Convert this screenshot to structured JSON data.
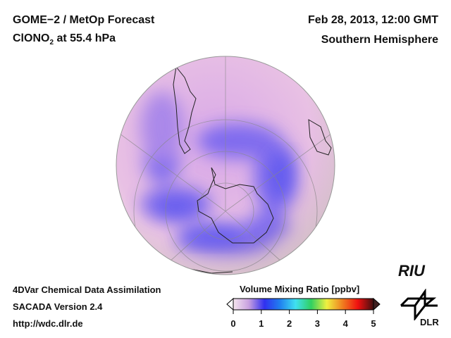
{
  "header": {
    "title": "GOME−2 / MetOp Forecast",
    "species": "ClONO",
    "species_sub": "2",
    "species_rest": " at 55.4 hPa",
    "date": "Feb 28, 2013, 12:00 GMT",
    "region": "Southern Hemisphere"
  },
  "footer": {
    "line1": "4DVar Chemical Data Assimilation",
    "line2": "SACADA Version 2.4",
    "line3": "http://wdc.dlr.de"
  },
  "colorbar": {
    "title": "Volume Mixing Ratio [ppbv]",
    "ticks": [
      "0",
      "1",
      "2",
      "3",
      "4",
      "5"
    ],
    "colors": [
      "#f6e6ee",
      "#c8a0e0",
      "#3030f0",
      "#2080f0",
      "#40e0f0",
      "#30d060",
      "#f0f040",
      "#f08020",
      "#f01010",
      "#401010"
    ]
  },
  "logos": {
    "riu": "RIU",
    "dlr": "DLR"
  }
}
